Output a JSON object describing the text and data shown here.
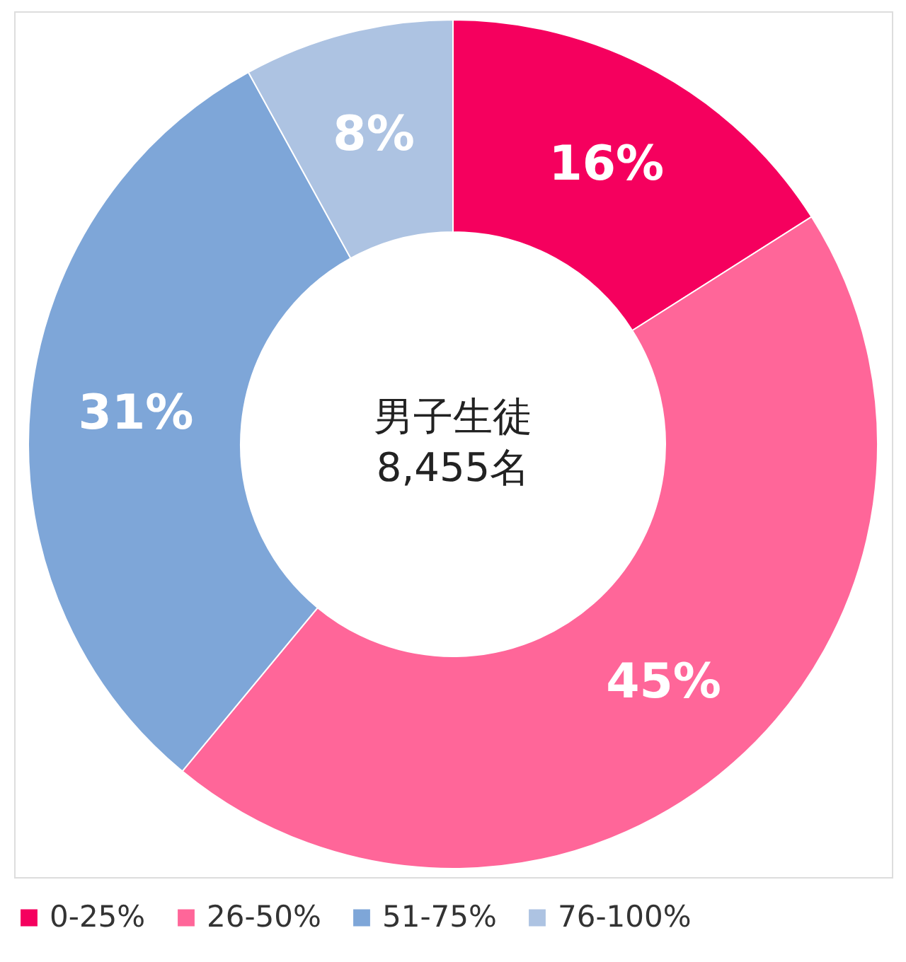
{
  "chart_data": {
    "type": "donut",
    "categories": [
      "0-25%",
      "26-50%",
      "51-75%",
      "76-100%"
    ],
    "values": [
      16,
      45,
      31,
      8
    ],
    "colors": [
      "#f5005e",
      "#ff6699",
      "#7ea6d8",
      "#adc3e2"
    ],
    "value_labels": [
      "16%",
      "45%",
      "31%",
      "8%"
    ],
    "annotations": [
      "男子生徒",
      "8,455名"
    ],
    "legend": "bottom"
  }
}
